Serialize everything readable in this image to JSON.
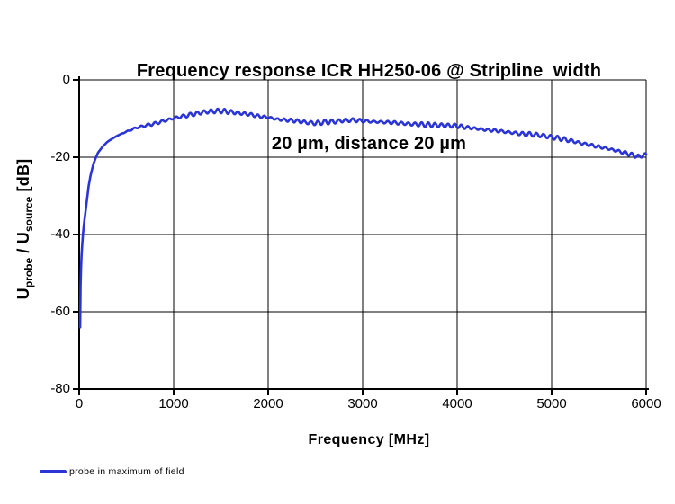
{
  "chart_data": {
    "type": "line",
    "title": "Frequency response ICR HH250-06 @ Stripline  width\n20 µm, distance 20 µm",
    "title_line1": "Frequency response ICR HH250-06 @ Stripline  width",
    "title_line2": "20 µm, distance 20 µm",
    "xlabel": "Frequency [MHz]",
    "ylabel": "U_probe / U_source [dB]",
    "ylabel_parts": [
      {
        "text": "U"
      },
      {
        "text": "probe",
        "sub": true
      },
      {
        "text": " / U"
      },
      {
        "text": "source",
        "sub": true
      },
      {
        "text": " [dB]"
      }
    ],
    "xlim": [
      0,
      6000
    ],
    "ylim": [
      -80,
      0
    ],
    "x_ticks": [
      0,
      1000,
      2000,
      3000,
      4000,
      5000,
      6000
    ],
    "y_ticks": [
      0,
      -20,
      -40,
      -60,
      -80
    ],
    "grid": true,
    "legend_position": "bottom-left",
    "colors": {
      "axis": "#000000",
      "grid": "#000000",
      "background": "#FFFFFF",
      "line": "#2B35D6"
    },
    "series": [
      {
        "name": "probe in maximum of field",
        "color": "#2B35D6",
        "points": [
          [
            10,
            -64
          ],
          [
            12,
            -58
          ],
          [
            15,
            -53
          ],
          [
            20,
            -48.5
          ],
          [
            25,
            -45.5
          ],
          [
            30,
            -43.5
          ],
          [
            40,
            -40
          ],
          [
            50,
            -37.5
          ],
          [
            60,
            -35.5
          ],
          [
            80,
            -31.5
          ],
          [
            100,
            -27.5
          ],
          [
            120,
            -24.8
          ],
          [
            150,
            -21.8
          ],
          [
            175,
            -20.2
          ],
          [
            200,
            -18.8
          ],
          [
            250,
            -17.2
          ],
          [
            300,
            -16.0
          ],
          [
            350,
            -15.2
          ],
          [
            400,
            -14.5
          ],
          [
            450,
            -13.9
          ],
          [
            500,
            -13.4
          ],
          [
            600,
            -12.4
          ],
          [
            700,
            -11.8
          ],
          [
            800,
            -11.3
          ],
          [
            900,
            -10.6
          ],
          [
            1000,
            -9.9
          ],
          [
            1100,
            -9.4
          ],
          [
            1200,
            -8.9
          ],
          [
            1300,
            -8.4
          ],
          [
            1400,
            -8.1
          ],
          [
            1500,
            -8.0
          ],
          [
            1600,
            -8.3
          ],
          [
            1700,
            -8.6
          ],
          [
            1800,
            -8.9
          ],
          [
            1900,
            -9.4
          ],
          [
            2000,
            -9.7
          ],
          [
            2100,
            -10.2
          ],
          [
            2200,
            -10.4
          ],
          [
            2300,
            -10.6
          ],
          [
            2400,
            -11.0
          ],
          [
            2500,
            -11.2
          ],
          [
            2600,
            -10.9
          ],
          [
            2700,
            -10.8
          ],
          [
            2800,
            -10.5
          ],
          [
            2900,
            -10.4
          ],
          [
            3000,
            -10.6
          ],
          [
            3100,
            -10.8
          ],
          [
            3200,
            -10.9
          ],
          [
            3300,
            -11.0
          ],
          [
            3400,
            -11.2
          ],
          [
            3500,
            -11.4
          ],
          [
            3600,
            -11.5
          ],
          [
            3700,
            -11.6
          ],
          [
            3800,
            -11.7
          ],
          [
            3900,
            -11.8
          ],
          [
            4000,
            -11.9
          ],
          [
            4100,
            -12.3
          ],
          [
            4200,
            -12.6
          ],
          [
            4300,
            -12.9
          ],
          [
            4400,
            -13.1
          ],
          [
            4500,
            -13.4
          ],
          [
            4600,
            -13.7
          ],
          [
            4700,
            -14.0
          ],
          [
            4800,
            -14.1
          ],
          [
            4900,
            -14.4
          ],
          [
            5000,
            -14.8
          ],
          [
            5100,
            -15.2
          ],
          [
            5200,
            -15.7
          ],
          [
            5300,
            -16.3
          ],
          [
            5400,
            -16.8
          ],
          [
            5500,
            -17.3
          ],
          [
            5600,
            -17.8
          ],
          [
            5700,
            -18.4
          ],
          [
            5800,
            -19.0
          ],
          [
            5880,
            -19.6
          ],
          [
            5930,
            -19.9
          ],
          [
            5960,
            -19.5
          ],
          [
            6000,
            -19.4
          ]
        ],
        "ripple": {
          "start_mhz": 430,
          "ramp_mhz": 300,
          "period_mhz": 72,
          "amplitude_db": 0.42
        }
      }
    ]
  }
}
